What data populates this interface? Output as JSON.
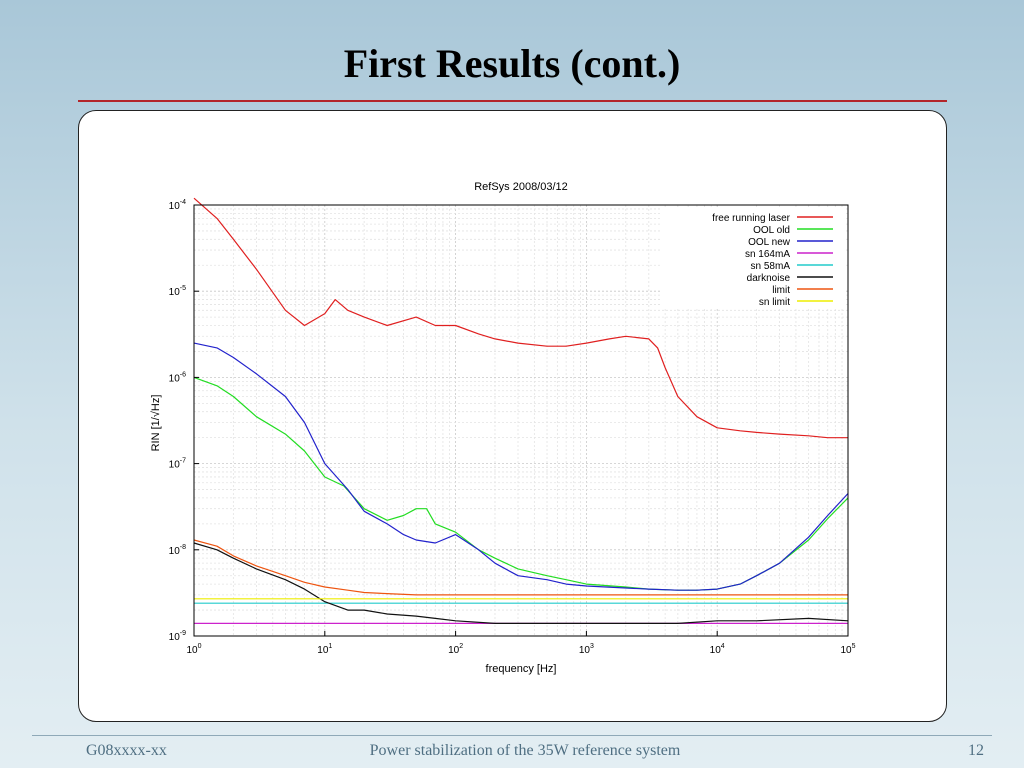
{
  "slide": {
    "title": "First Results (cont.)",
    "footer_left": "G08xxxx-xx",
    "footer_center": "Power stabilization of the 35W reference system",
    "footer_right": "12"
  },
  "chart_data": {
    "type": "line",
    "title": "RefSys 2008/03/12",
    "xlabel": "frequency [Hz]",
    "ylabel": "RIN [1/√Hz]",
    "xscale": "log",
    "yscale": "log",
    "xlim": [
      1,
      100000
    ],
    "ylim": [
      1e-09,
      0.0001
    ],
    "grid": true,
    "legend_position": "top-right",
    "x_ticks": [
      {
        "value": 1,
        "base": "10",
        "exp": "0"
      },
      {
        "value": 10,
        "base": "10",
        "exp": "1"
      },
      {
        "value": 100,
        "base": "10",
        "exp": "2"
      },
      {
        "value": 1000,
        "base": "10",
        "exp": "3"
      },
      {
        "value": 10000,
        "base": "10",
        "exp": "4"
      },
      {
        "value": 100000,
        "base": "10",
        "exp": "5"
      }
    ],
    "y_ticks": [
      {
        "value": 0.0001,
        "base": "10",
        "exp": "-4"
      },
      {
        "value": 1e-05,
        "base": "10",
        "exp": "-5"
      },
      {
        "value": 1e-06,
        "base": "10",
        "exp": "-6"
      },
      {
        "value": 1e-07,
        "base": "10",
        "exp": "-7"
      },
      {
        "value": 1e-08,
        "base": "10",
        "exp": "-8"
      },
      {
        "value": 1e-09,
        "base": "10",
        "exp": "-9"
      }
    ],
    "series": [
      {
        "name": "free running laser",
        "color": "#e02020",
        "x": [
          1,
          1.5,
          2,
          3,
          5,
          7,
          10,
          12,
          15,
          20,
          30,
          50,
          70,
          100,
          150,
          200,
          300,
          500,
          700,
          1000,
          1500,
          2000,
          3000,
          3500,
          4000,
          5000,
          7000,
          10000,
          15000,
          20000,
          30000,
          50000,
          70000,
          100000
        ],
        "y": [
          0.00012,
          7e-05,
          4e-05,
          1.8e-05,
          6e-06,
          4e-06,
          5.5e-06,
          8e-06,
          6e-06,
          5e-06,
          4e-06,
          5e-06,
          4e-06,
          4e-06,
          3.2e-06,
          2.8e-06,
          2.5e-06,
          2.3e-06,
          2.3e-06,
          2.5e-06,
          2.8e-06,
          3e-06,
          2.8e-06,
          2.2e-06,
          1.3e-06,
          6e-07,
          3.5e-07,
          2.6e-07,
          2.4e-07,
          2.3e-07,
          2.2e-07,
          2.1e-07,
          2e-07,
          2e-07
        ]
      },
      {
        "name": "OOL old",
        "color": "#22dd22",
        "x": [
          1,
          1.5,
          2,
          3,
          5,
          7,
          10,
          14,
          20,
          30,
          40,
          50,
          60,
          70,
          100,
          150,
          200,
          300,
          500,
          700,
          1000,
          2000,
          3000,
          5000,
          7000,
          10000,
          15000,
          20000,
          30000,
          50000,
          70000,
          100000
        ],
        "y": [
          1e-06,
          8e-07,
          6e-07,
          3.5e-07,
          2.2e-07,
          1.4e-07,
          7e-08,
          5.5e-08,
          3e-08,
          2.2e-08,
          2.5e-08,
          3e-08,
          3e-08,
          2e-08,
          1.6e-08,
          1e-08,
          8e-09,
          6e-09,
          5e-09,
          4.5e-09,
          4e-09,
          3.7e-09,
          3.5e-09,
          3.4e-09,
          3.4e-09,
          3.5e-09,
          4e-09,
          5e-09,
          7e-09,
          1.3e-08,
          2.3e-08,
          4e-08
        ]
      },
      {
        "name": "OOL new",
        "color": "#2222cc",
        "x": [
          1,
          1.5,
          2,
          3,
          5,
          7,
          10,
          15,
          20,
          30,
          40,
          50,
          70,
          100,
          150,
          200,
          300,
          500,
          700,
          1000,
          2000,
          3000,
          5000,
          7000,
          10000,
          15000,
          20000,
          30000,
          50000,
          70000,
          100000
        ],
        "y": [
          2.5e-06,
          2.2e-06,
          1.7e-06,
          1.1e-06,
          6e-07,
          3e-07,
          1e-07,
          5e-08,
          2.8e-08,
          2e-08,
          1.5e-08,
          1.3e-08,
          1.2e-08,
          1.5e-08,
          1e-08,
          7e-09,
          5e-09,
          4.5e-09,
          4e-09,
          3.8e-09,
          3.6e-09,
          3.5e-09,
          3.4e-09,
          3.4e-09,
          3.5e-09,
          4e-09,
          5e-09,
          7e-09,
          1.4e-08,
          2.5e-08,
          4.5e-08
        ]
      },
      {
        "name": "sn 164mA",
        "color": "#cc22cc",
        "x": [
          1,
          100000
        ],
        "y": [
          1.4e-09,
          1.4e-09
        ]
      },
      {
        "name": "sn 58mA",
        "color": "#22cccc",
        "x": [
          1,
          100000
        ],
        "y": [
          2.4e-09,
          2.4e-09
        ]
      },
      {
        "name": "darknoise",
        "color": "#111111",
        "x": [
          1,
          1.5,
          2,
          3,
          5,
          7,
          10,
          15,
          20,
          30,
          50,
          70,
          100,
          200,
          300,
          500,
          1000,
          2000,
          3000,
          5000,
          10000,
          20000,
          50000,
          100000
        ],
        "y": [
          1.2e-08,
          1e-08,
          8e-09,
          6e-09,
          4.5e-09,
          3.5e-09,
          2.5e-09,
          2e-09,
          2e-09,
          1.8e-09,
          1.7e-09,
          1.6e-09,
          1.5e-09,
          1.4e-09,
          1.4e-09,
          1.4e-09,
          1.4e-09,
          1.4e-09,
          1.4e-09,
          1.4e-09,
          1.5e-09,
          1.5e-09,
          1.6e-09,
          1.5e-09
        ]
      },
      {
        "name": "limit",
        "color": "#ee5511",
        "x": [
          1,
          1.5,
          2,
          3,
          5,
          7,
          10,
          15,
          20,
          30,
          50,
          70,
          100,
          200,
          500,
          1000,
          3000,
          10000,
          30000,
          100000
        ],
        "y": [
          1.3e-08,
          1.1e-08,
          8.5e-09,
          6.5e-09,
          5e-09,
          4.2e-09,
          3.7e-09,
          3.4e-09,
          3.2e-09,
          3.1e-09,
          3e-09,
          3e-09,
          3e-09,
          3e-09,
          3e-09,
          3e-09,
          3e-09,
          3e-09,
          3e-09,
          3e-09
        ]
      },
      {
        "name": "sn limit",
        "color": "#eeee00",
        "x": [
          1,
          100000
        ],
        "y": [
          2.7e-09,
          2.7e-09
        ]
      }
    ]
  }
}
